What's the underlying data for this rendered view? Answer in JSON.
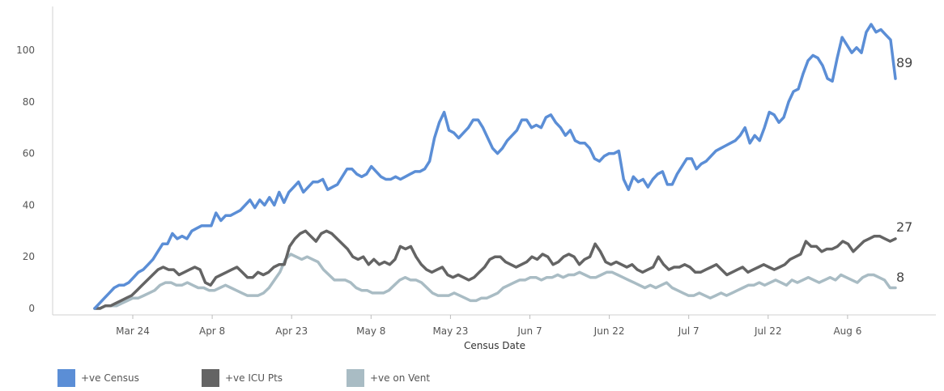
{
  "chart_data": {
    "type": "line",
    "title": "",
    "xlabel": "Census Date",
    "ylabel": "",
    "ylim": [
      0,
      112
    ],
    "yticks": [
      0,
      20,
      40,
      60,
      80,
      100
    ],
    "xtick_labels": [
      "Mar 24",
      "Apr 8",
      "Apr 23",
      "May 8",
      "May 23",
      "Jun 7",
      "Jun 22",
      "Jul 7",
      "Jul 22",
      "Aug 6"
    ],
    "xtick_day_index": [
      0,
      15,
      30,
      45,
      60,
      75,
      90,
      105,
      120,
      135
    ],
    "x_start_day_index": -7,
    "grid": false,
    "legend_position": "bottom-left",
    "series": [
      {
        "name": "+ve Census",
        "color": "#5b8ed6",
        "end_label": "89",
        "values": [
          0,
          2,
          4,
          6,
          8,
          9,
          9,
          10,
          12,
          14,
          15,
          17,
          19,
          22,
          25,
          25,
          29,
          27,
          28,
          27,
          30,
          31,
          32,
          32,
          32,
          37,
          34,
          36,
          36,
          37,
          38,
          40,
          42,
          39,
          42,
          40,
          43,
          40,
          45,
          41,
          45,
          47,
          49,
          45,
          47,
          49,
          49,
          50,
          46,
          47,
          48,
          51,
          54,
          54,
          52,
          51,
          52,
          55,
          53,
          51,
          50,
          50,
          51,
          50,
          51,
          52,
          53,
          53,
          54,
          57,
          66,
          72,
          76,
          69,
          68,
          66,
          68,
          70,
          73,
          73,
          70,
          66,
          62,
          60,
          62,
          65,
          67,
          69,
          73,
          73,
          70,
          71,
          70,
          74,
          75,
          72,
          70,
          67,
          69,
          65,
          64,
          64,
          62,
          58,
          57,
          59,
          60,
          60,
          61,
          50,
          46,
          51,
          49,
          50,
          47,
          50,
          52,
          53,
          48,
          48,
          52,
          55,
          58,
          58,
          54,
          56,
          57,
          59,
          61,
          62,
          63,
          64,
          65,
          67,
          70,
          64,
          67,
          65,
          70,
          76,
          75,
          72,
          74,
          80,
          84,
          85,
          91,
          96,
          98,
          97,
          94,
          89,
          88,
          97,
          105,
          102,
          99,
          101,
          99,
          107,
          110,
          107,
          108,
          106,
          104,
          89
        ]
      },
      {
        "name": "+ve ICU Pts",
        "color": "#646464",
        "end_label": "27",
        "values": [
          0,
          0,
          1,
          1,
          2,
          3,
          4,
          5,
          7,
          9,
          11,
          13,
          15,
          16,
          15,
          15,
          13,
          14,
          15,
          16,
          15,
          10,
          9,
          12,
          13,
          14,
          15,
          16,
          14,
          12,
          12,
          14,
          13,
          14,
          16,
          17,
          17,
          24,
          27,
          29,
          30,
          28,
          26,
          29,
          30,
          29,
          27,
          25,
          23,
          20,
          19,
          20,
          17,
          19,
          17,
          18,
          17,
          19,
          24,
          23,
          24,
          20,
          17,
          15,
          14,
          15,
          16,
          13,
          12,
          13,
          12,
          11,
          12,
          14,
          16,
          19,
          20,
          20,
          18,
          17,
          16,
          17,
          18,
          20,
          19,
          21,
          20,
          17,
          18,
          20,
          21,
          20,
          17,
          19,
          20,
          25,
          22,
          18,
          17,
          18,
          17,
          16,
          17,
          15,
          14,
          15,
          16,
          20,
          17,
          15,
          16,
          16,
          17,
          16,
          14,
          14,
          15,
          16,
          17,
          15,
          13,
          14,
          15,
          16,
          14,
          15,
          16,
          17,
          16,
          15,
          16,
          17,
          19,
          20,
          21,
          26,
          24,
          24,
          22,
          23,
          23,
          24,
          26,
          25,
          22,
          24,
          26,
          27,
          28,
          28,
          27,
          26,
          27
        ]
      },
      {
        "name": "+ve on Vent",
        "color": "#a9bcc4",
        "end_label": "8",
        "values": [
          0,
          0,
          1,
          1,
          1,
          2,
          3,
          4,
          4,
          5,
          6,
          7,
          9,
          10,
          10,
          9,
          9,
          10,
          9,
          8,
          8,
          7,
          7,
          8,
          9,
          8,
          7,
          6,
          5,
          5,
          5,
          6,
          8,
          11,
          14,
          19,
          21,
          20,
          19,
          20,
          19,
          18,
          15,
          13,
          11,
          11,
          11,
          10,
          8,
          7,
          7,
          6,
          6,
          6,
          7,
          9,
          11,
          12,
          11,
          11,
          10,
          8,
          6,
          5,
          5,
          5,
          6,
          5,
          4,
          3,
          3,
          4,
          4,
          5,
          6,
          8,
          9,
          10,
          11,
          11,
          12,
          12,
          11,
          12,
          12,
          13,
          12,
          13,
          13,
          14,
          13,
          12,
          12,
          13,
          14,
          14,
          13,
          12,
          11,
          10,
          9,
          8,
          9,
          8,
          9,
          10,
          8,
          7,
          6,
          5,
          5,
          6,
          5,
          4,
          5,
          6,
          5,
          6,
          7,
          8,
          9,
          9,
          10,
          9,
          10,
          11,
          10,
          9,
          11,
          10,
          11,
          12,
          11,
          10,
          11,
          12,
          11,
          13,
          12,
          11,
          10,
          12,
          13,
          13,
          12,
          11,
          8,
          8
        ]
      }
    ]
  }
}
